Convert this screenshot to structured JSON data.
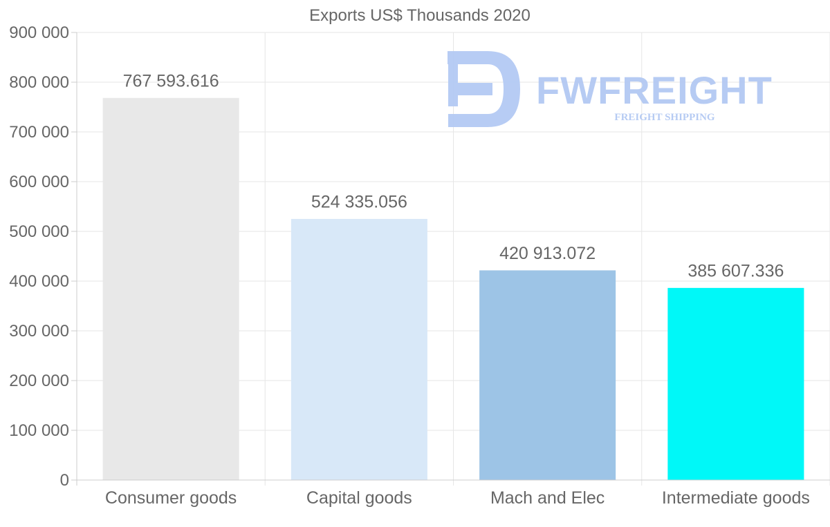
{
  "chart_data": {
    "type": "bar",
    "title": "Exports US$ Thousands 2020",
    "categories": [
      "Consumer goods",
      "Capital goods",
      "Mach and Elec",
      "Intermediate goods"
    ],
    "values": [
      767593.616,
      524335.056,
      420913.072,
      385607.336
    ],
    "value_labels": [
      "767 593.616",
      "524 335.056",
      "420 913.072",
      "385 607.336"
    ],
    "colors": [
      "#e8e8e8",
      "#d8e8f8",
      "#9dc4e6",
      "#00f8f8"
    ],
    "ylim": [
      0,
      900000
    ],
    "yticks": [
      {
        "value": 0,
        "label": "0"
      },
      {
        "value": 100000,
        "label": "100 000"
      },
      {
        "value": 200000,
        "label": "200 000"
      },
      {
        "value": 300000,
        "label": "300 000"
      },
      {
        "value": 400000,
        "label": "400 000"
      },
      {
        "value": 500000,
        "label": "500 000"
      },
      {
        "value": 600000,
        "label": "600 000"
      },
      {
        "value": 700000,
        "label": "700 000"
      },
      {
        "value": 800000,
        "label": "800 000"
      },
      {
        "value": 900000,
        "label": "900 000"
      }
    ],
    "xlabel": "",
    "ylabel": "",
    "grid": true,
    "legend": "none"
  },
  "watermark": {
    "brand": "FWFREIGHT",
    "tagline": "FREIGHT SHIPPING",
    "color": "#b3c9f3"
  }
}
